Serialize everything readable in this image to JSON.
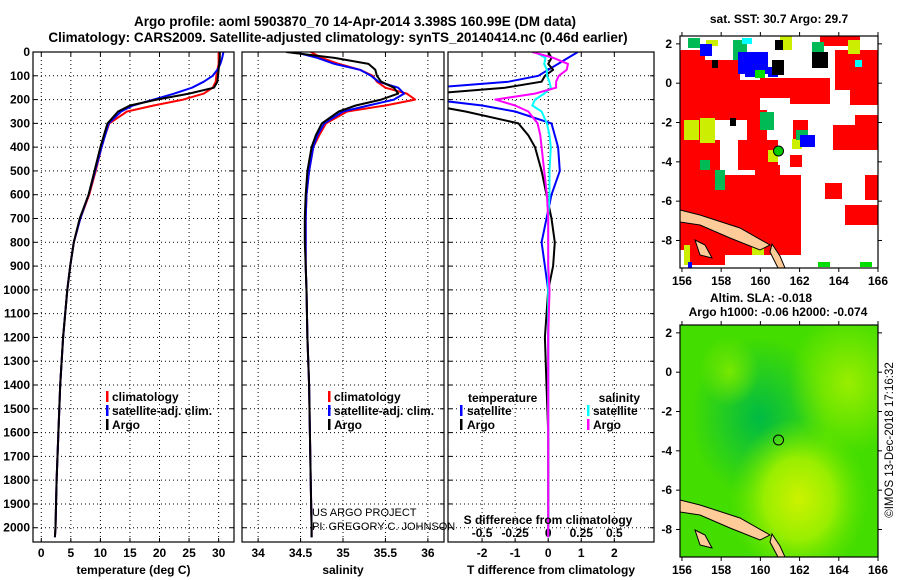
{
  "header": {
    "title_line1": "Argo profile: aoml 5903870_70 14-Apr-2014 3.398S 160.99E (DM data)",
    "title_line2": "Climatology: CARS2009. Satellite-adjusted climatology: synTS_20140414.nc (0.46d earlier)"
  },
  "colors": {
    "argo": "#000000",
    "climatology": "#ff0000",
    "satellite": "#0000ff",
    "sal_satellite": "#00ffff",
    "sal_argo": "#ff00ff"
  },
  "watermark": {
    "line1": "US ARGO PROJECT",
    "line2": "PI: GREGORY C. JOHNSON"
  },
  "credit": "©IMOS 13-Dec-2018 17:16:32",
  "chart_data": [
    {
      "type": "line",
      "title": "",
      "xlabel": "temperature (deg C)",
      "ylabel": "",
      "xlim": [
        -1.4,
        32.6
      ],
      "ylim": [
        2060,
        0
      ],
      "xticks": [
        0,
        5,
        10,
        15,
        20,
        25,
        30
      ],
      "yticks": [
        0,
        100,
        200,
        300,
        400,
        500,
        600,
        700,
        800,
        900,
        1000,
        1100,
        1200,
        1300,
        1400,
        1500,
        1600,
        1700,
        1800,
        1900,
        2000
      ],
      "grid": true,
      "legend": [
        "climatology",
        "satellite-adj. clim.",
        "Argo"
      ],
      "legend_position": "lower-right",
      "depth": [
        0,
        25,
        50,
        75,
        100,
        125,
        150,
        175,
        200,
        225,
        250,
        300,
        350,
        400,
        500,
        600,
        700,
        800,
        900,
        1000,
        1200,
        1400,
        1600,
        1800,
        2000,
        2040
      ],
      "series": [
        {
          "name": "climatology",
          "color": "#ff0000",
          "values": [
            30,
            30,
            30,
            29.8,
            29.6,
            29.5,
            29,
            27.5,
            24,
            19,
            14.5,
            11.5,
            10.8,
            10.2,
            9.2,
            8.1,
            6.6,
            5.5,
            4.9,
            4.4,
            3.7,
            3.2,
            2.9,
            2.6,
            2.4,
            2.3
          ]
        },
        {
          "name": "satellite-adj. clim.",
          "color": "#0000ff",
          "values": [
            30.8,
            30.6,
            30.3,
            29.8,
            29,
            27.5,
            25.5,
            22.5,
            19,
            15.5,
            13.5,
            11.4,
            10.8,
            10.2,
            9.1,
            8,
            6.6,
            5.5,
            4.9,
            4.4,
            3.7,
            3.2,
            2.9,
            2.6,
            2.4,
            2.3
          ]
        },
        {
          "name": "Argo",
          "color": "#000000",
          "values": [
            30.2,
            30.2,
            30.1,
            30,
            29.9,
            29.8,
            29.2,
            25,
            19.5,
            15,
            13,
            11.2,
            10.6,
            10,
            9,
            8,
            6.5,
            5.5,
            4.9,
            4.4,
            3.7,
            3.2,
            2.9,
            2.6,
            2.4,
            2.3
          ]
        }
      ]
    },
    {
      "type": "line",
      "xlabel": "salinity",
      "xlim": [
        33.81,
        36.19
      ],
      "ylim": [
        2060,
        0
      ],
      "xticks": [
        34,
        34.5,
        35,
        35.5,
        36
      ],
      "grid": true,
      "legend": [
        "climatology",
        "satellite-adj. clim.",
        "Argo"
      ],
      "legend_position": "lower-right",
      "depth": [
        0,
        25,
        50,
        75,
        100,
        125,
        150,
        175,
        200,
        225,
        250,
        300,
        350,
        400,
        500,
        600,
        700,
        800,
        900,
        1000,
        1200,
        1400,
        1600,
        1800,
        2000,
        2040
      ],
      "series": [
        {
          "name": "climatology",
          "color": "#ff0000",
          "values": [
            34.62,
            34.75,
            34.95,
            35.2,
            35.35,
            35.4,
            35.5,
            35.75,
            35.85,
            35.5,
            35.05,
            34.8,
            34.72,
            34.65,
            34.6,
            34.57,
            34.56,
            34.56,
            34.56,
            34.57,
            34.58,
            34.6,
            34.61,
            34.62,
            34.63,
            34.63
          ]
        },
        {
          "name": "satellite-adj. clim.",
          "color": "#0000ff",
          "values": [
            34.43,
            34.7,
            34.9,
            35.2,
            35.33,
            35.42,
            35.65,
            35.72,
            35.6,
            35.3,
            35.0,
            34.78,
            34.7,
            34.65,
            34.6,
            34.57,
            34.56,
            34.56,
            34.56,
            34.57,
            34.58,
            34.6,
            34.61,
            34.62,
            34.63,
            34.63
          ]
        },
        {
          "name": "Argo",
          "color": "#000000",
          "values": [
            34.33,
            34.9,
            35.3,
            35.38,
            35.4,
            35.45,
            35.6,
            35.65,
            35.45,
            35.15,
            34.95,
            34.75,
            34.68,
            34.63,
            34.58,
            34.56,
            34.55,
            34.55,
            34.56,
            34.57,
            34.58,
            34.6,
            34.61,
            34.62,
            34.63,
            34.63
          ]
        }
      ]
    },
    {
      "type": "line",
      "xlabel": "T difference from climatology",
      "xlabel_top": "S difference from climatology",
      "xlim": [
        -3.03,
        3.2
      ],
      "ylim": [
        2060,
        0
      ],
      "xticks": [
        -2,
        -1,
        0,
        1,
        2
      ],
      "sticks": [
        -0.5,
        -0.25,
        0,
        0.25,
        0.5
      ],
      "s_to_t_scale": 4,
      "grid": true,
      "legend_titles": [
        "temperature",
        "salinity"
      ],
      "legend_position": "lower-center",
      "depth": [
        0,
        25,
        50,
        75,
        100,
        125,
        150,
        175,
        200,
        225,
        250,
        300,
        350,
        400,
        500,
        600,
        700,
        800,
        900,
        1000,
        1200,
        1400,
        1600,
        1800,
        2000,
        2040
      ],
      "series": [
        {
          "name": "satellite",
          "group": "temperature",
          "color": "#0000ff",
          "values": [
            0.9,
            0.6,
            0.3,
            0,
            -0.3,
            -1.2,
            -3.5,
            -3.5,
            -3.5,
            -2.0,
            -1.0,
            0.1,
            0.2,
            0.3,
            0.35,
            0.1,
            -0.05,
            -0.2,
            -0.1,
            0,
            0,
            0,
            0,
            0,
            0,
            0
          ]
        },
        {
          "name": "Argo",
          "group": "temperature",
          "color": "#000000",
          "values": [
            0,
            0.1,
            0,
            0.15,
            -0.1,
            -0.2,
            -1.3,
            -3.5,
            -3.5,
            -3.5,
            -2.5,
            -0.9,
            -0.6,
            -0.4,
            -0.2,
            -0.05,
            0.1,
            0.2,
            0.15,
            0,
            -0.1,
            -0.05,
            0,
            0,
            0,
            0
          ]
        },
        {
          "name": "satellite",
          "group": "salinity",
          "color": "#00ffff",
          "values": [
            -0.1,
            -0.02,
            -0.03,
            -0.01,
            -0.01,
            0.01,
            0.02,
            -0.03,
            -0.1,
            -0.12,
            -0.05,
            -0.01,
            0.01,
            0.02,
            0.01,
            0.01,
            0,
            0,
            0,
            0,
            0,
            0,
            0,
            0,
            0,
            0
          ]
        },
        {
          "name": "Argo",
          "group": "salinity",
          "color": "#ff00ff",
          "values": [
            -0.12,
            0.04,
            0.15,
            0.14,
            0.08,
            0.06,
            0.06,
            -0.1,
            -0.4,
            -0.25,
            -0.15,
            -0.08,
            -0.06,
            -0.05,
            -0.03,
            -0.01,
            0,
            0,
            0,
            0.01,
            0,
            0,
            0,
            0,
            0,
            0
          ]
        }
      ]
    },
    {
      "type": "heatmap",
      "title": "sat. SST: 30.7 Argo: 29.7",
      "xlim": [
        155.9,
        166
      ],
      "ylim": [
        -9.4,
        2.4
      ],
      "xticks": [
        156,
        158,
        160,
        162,
        164,
        166
      ],
      "yticks": [
        2,
        0,
        -2,
        -4,
        -6,
        -8
      ],
      "argo_position": [
        160.99,
        -3.398
      ]
    },
    {
      "type": "heatmap",
      "title": "Altim. SLA: -0.018",
      "subtitle": "Argo h1000: -0.06 h2000: -0.074",
      "xlim": [
        155.9,
        166
      ],
      "ylim": [
        -9.4,
        2.4
      ],
      "xticks": [
        156,
        158,
        160,
        162,
        164,
        166
      ],
      "yticks": [
        2,
        0,
        -2,
        -4,
        -6,
        -8
      ],
      "argo_position": [
        160.99,
        -3.398
      ]
    }
  ]
}
